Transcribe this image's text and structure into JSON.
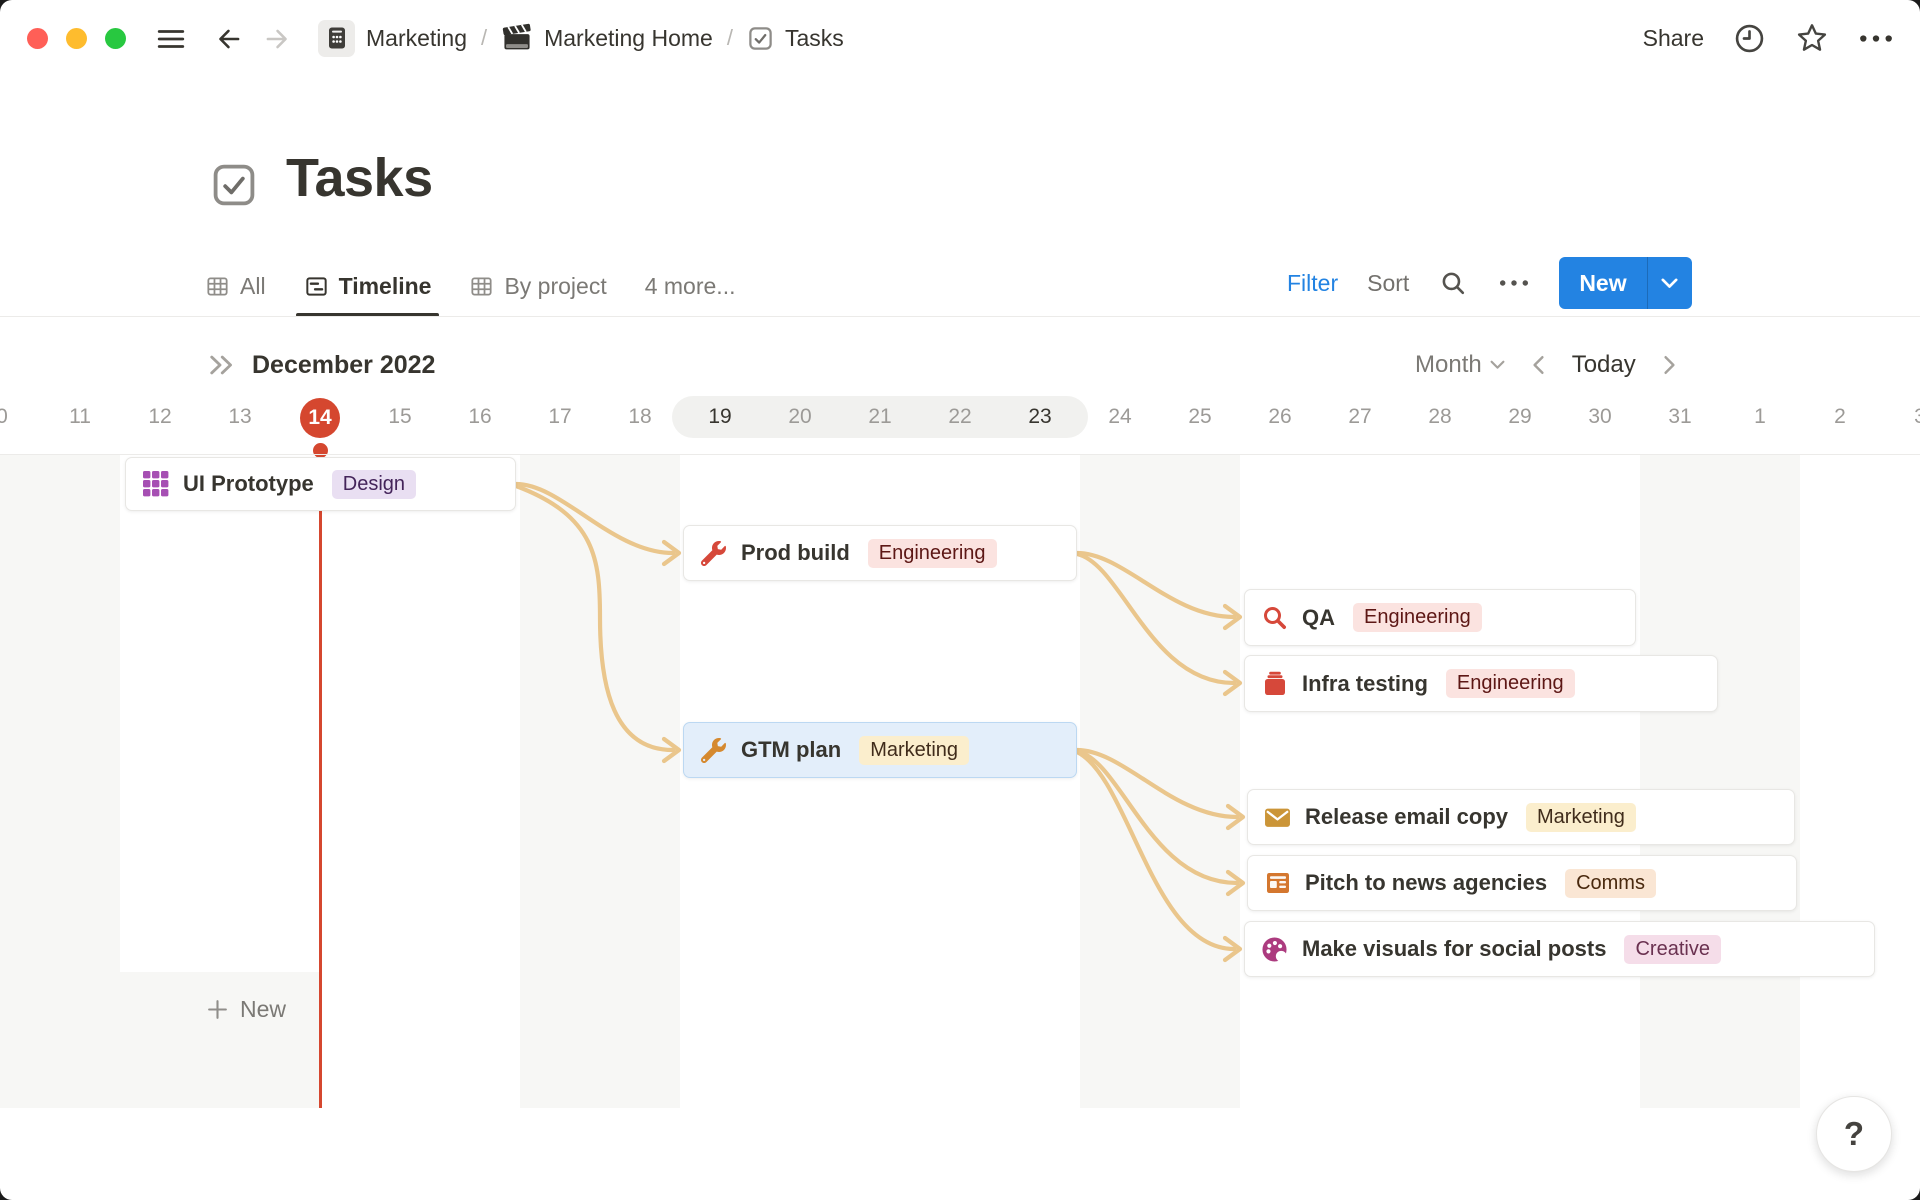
{
  "topbar": {
    "breadcrumb": [
      {
        "label": "Marketing",
        "icon": "calendar-icon"
      },
      {
        "label": "Marketing Home",
        "icon": "clapperboard-icon"
      },
      {
        "label": "Tasks",
        "icon": "checkbox-icon"
      }
    ],
    "separator": "/",
    "share_label": "Share"
  },
  "page": {
    "title": "Tasks",
    "icon": "checkbox-icon"
  },
  "tabs": {
    "items": [
      {
        "label": "All",
        "icon": "table-icon",
        "active": false
      },
      {
        "label": "Timeline",
        "icon": "timeline-icon",
        "active": true
      },
      {
        "label": "By project",
        "icon": "table-icon",
        "active": false
      }
    ],
    "more_label": "4 more...",
    "filter_label": "Filter",
    "sort_label": "Sort",
    "new_label": "New",
    "accent_color": "#2383E2"
  },
  "timeline": {
    "month_label": "December 2022",
    "scale_label": "Month",
    "today_label": "Today",
    "dates": [
      "0",
      "11",
      "12",
      "13",
      "14",
      "15",
      "16",
      "17",
      "18",
      "19",
      "20",
      "21",
      "22",
      "23",
      "24",
      "25",
      "26",
      "27",
      "28",
      "29",
      "30",
      "31",
      "1",
      "2",
      "3"
    ],
    "today_date": "14",
    "dark_dates": [
      "19",
      "23"
    ],
    "range_highlight": {
      "start": "19",
      "end": "23"
    },
    "today_color": "#D5472F",
    "connector_color": "#EAC68C",
    "weekend_color": "#F7F7F5",
    "new_row_label": "New",
    "help_label": "?"
  },
  "tasks": [
    {
      "title": "UI Prototype",
      "icon": "grid-icon",
      "icon_color": "#A64FB3",
      "selected": false,
      "tag": {
        "label": "Design",
        "bg": "#E9DFF2",
        "color": "#44245A"
      }
    },
    {
      "title": "Prod build",
      "icon": "wrench-icon",
      "icon_color": "#D6483A",
      "selected": false,
      "tag": {
        "label": "Engineering",
        "bg": "#FBE3E0",
        "color": "#5D1715"
      }
    },
    {
      "title": "QA",
      "icon": "magnifier-icon",
      "icon_color": "#D6483A",
      "selected": false,
      "tag": {
        "label": "Engineering",
        "bg": "#FBE3E0",
        "color": "#5D1715"
      }
    },
    {
      "title": "Infra testing",
      "icon": "toolbox-icon",
      "icon_color": "#D6483A",
      "selected": false,
      "tag": {
        "label": "Engineering",
        "bg": "#FBE3E0",
        "color": "#5D1715"
      }
    },
    {
      "title": "GTM plan",
      "icon": "wrench-icon",
      "icon_color": "#D5892F",
      "selected": true,
      "tag": {
        "label": "Marketing",
        "bg": "#FBEECD",
        "color": "#402C1B"
      }
    },
    {
      "title": "Release email copy",
      "icon": "envelope-icon",
      "icon_color": "#CB9538",
      "selected": false,
      "tag": {
        "label": "Marketing",
        "bg": "#FBEECD",
        "color": "#402C1B"
      }
    },
    {
      "title": "Pitch to news agencies",
      "icon": "newspaper-icon",
      "icon_color": "#D4772F",
      "selected": false,
      "tag": {
        "label": "Comms",
        "bg": "#FAE6D4",
        "color": "#49290E"
      }
    },
    {
      "title": "Make visuals for social posts",
      "icon": "palette-icon",
      "icon_color": "#AC3B7F",
      "selected": false,
      "tag": {
        "label": "Creative",
        "bg": "#F5DDE9",
        "color": "#6A3150"
      }
    }
  ]
}
